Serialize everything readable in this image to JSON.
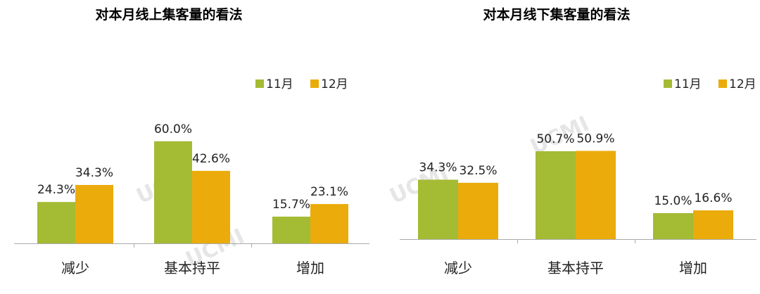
{
  "colors": {
    "11月": "#a4bb34",
    "12月": "#eaab0b",
    "axis": "#aaaaaa"
  },
  "watermark": "UCMI",
  "chart_data": [
    {
      "type": "bar",
      "title": "对本月线上集客量的看法",
      "categories": [
        "减少",
        "基本持平",
        "增加"
      ],
      "series": [
        {
          "name": "11月",
          "values": [
            24.3,
            60.0,
            15.7
          ]
        },
        {
          "name": "12月",
          "values": [
            34.3,
            42.6,
            23.1
          ]
        }
      ],
      "value_format": "percent_1dp",
      "legend": "top-right",
      "grid": false
    },
    {
      "type": "bar",
      "title": "对本月线下集客量的看法",
      "categories": [
        "减少",
        "基本持平",
        "增加"
      ],
      "series": [
        {
          "name": "11月",
          "values": [
            34.3,
            50.7,
            15.0
          ]
        },
        {
          "name": "12月",
          "values": [
            32.5,
            50.9,
            16.6
          ]
        }
      ],
      "value_format": "percent_1dp",
      "legend": "top-right",
      "grid": false
    }
  ]
}
